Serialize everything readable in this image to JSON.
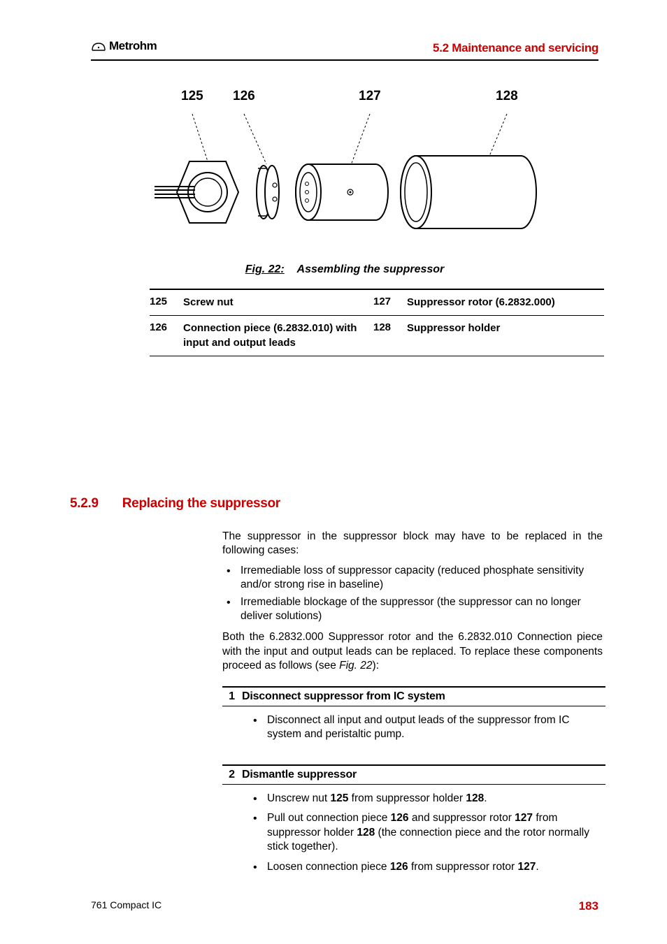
{
  "header": {
    "logo_text": "Metrohm",
    "title": "5.2 Maintenance and servicing",
    "title_color": "#cc0000"
  },
  "figure": {
    "labels": {
      "a": "125",
      "b": "126",
      "c": "127",
      "d": "128"
    },
    "caption_tag": "Fig. 22:",
    "caption_text": "Assembling the suppressor",
    "diagram": {
      "callout_dash": "3,3",
      "stroke": "#000000"
    }
  },
  "parts": [
    {
      "num": "125",
      "desc": "Screw nut",
      "num2": "127",
      "desc2": "Suppressor rotor (6.2832.000)"
    },
    {
      "num": "126",
      "desc": "Connection piece (6.2832.010) with input and output leads",
      "num2": "128",
      "desc2": "Suppressor holder"
    }
  ],
  "section": {
    "num": "5.2.9",
    "title": "Replacing the suppressor"
  },
  "body": {
    "p1": "The suppressor in the suppressor block may have to be replaced in the following cases:",
    "b1": "Irremediable loss of suppressor capacity (reduced phosphate sensitivity and/or strong rise in baseline)",
    "b2": "Irremediable blockage of the suppressor (the suppressor can no longer deliver solutions)",
    "p2a": "Both the 6.2832.000 Suppressor rotor and the 6.2832.010 Connection piece with the input and output leads can be replaced. To replace these components proceed as follows (see ",
    "p2b": "Fig. 22",
    "p2c": "):"
  },
  "steps": [
    {
      "num": "1",
      "title": "Disconnect suppressor from IC system",
      "items": [
        {
          "text": "Disconnect all input and output leads of the suppressor from IC system and peristaltic pump."
        }
      ]
    },
    {
      "num": "2",
      "title": "Dismantle suppressor",
      "items": [
        {
          "parts": [
            {
              "t": "Unscrew nut "
            },
            {
              "t": "125",
              "b": true
            },
            {
              "t": " from suppressor holder "
            },
            {
              "t": "128",
              "b": true
            },
            {
              "t": "."
            }
          ]
        },
        {
          "parts": [
            {
              "t": "Pull out connection piece "
            },
            {
              "t": "126",
              "b": true
            },
            {
              "t": " and suppressor rotor "
            },
            {
              "t": "127",
              "b": true
            },
            {
              "t": " from suppressor holder "
            },
            {
              "t": "128",
              "b": true
            },
            {
              "t": " (the connection piece and the rotor normally stick together)."
            }
          ]
        },
        {
          "parts": [
            {
              "t": "Loosen connection piece "
            },
            {
              "t": "126",
              "b": true
            },
            {
              "t": " from suppressor rotor "
            },
            {
              "t": "127",
              "b": true
            },
            {
              "t": "."
            }
          ]
        }
      ]
    }
  ],
  "footer": {
    "left": "761 Compact IC",
    "page": "183"
  }
}
